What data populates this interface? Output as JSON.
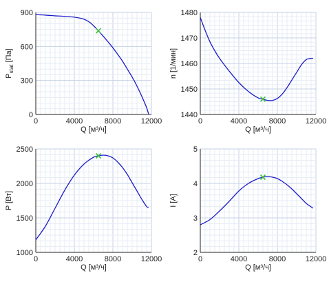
{
  "chart_data": [
    {
      "type": "line",
      "xlabel": "Q [м³/ч]",
      "ylabel": "P",
      "ylabel_sub": "stat",
      "ylabel_unit": " [Па]",
      "xlim": [
        0,
        12000
      ],
      "ylim": [
        0,
        900
      ],
      "x_ticks": [
        0,
        4000,
        8000,
        12000
      ],
      "y_ticks": [
        0,
        300,
        600,
        900
      ],
      "grid": true,
      "x": [
        0,
        1000,
        2000,
        3000,
        4000,
        5000,
        5600,
        6000,
        6500,
        7000,
        7500,
        8000,
        8500,
        9000,
        9500,
        10000,
        10500,
        11000,
        11500,
        11700
      ],
      "y": [
        880,
        876,
        870,
        865,
        858,
        840,
        812,
        782,
        738,
        690,
        640,
        588,
        530,
        470,
        400,
        330,
        250,
        160,
        60,
        5
      ],
      "operating_point": {
        "x": 6500,
        "y": 738
      }
    },
    {
      "type": "line",
      "xlabel": "Q [м³/ч]",
      "ylabel": "n [1/мин]",
      "xlim": [
        0,
        12000
      ],
      "ylim": [
        1440,
        1480
      ],
      "x_ticks": [
        0,
        4000,
        8000,
        12000
      ],
      "y_ticks": [
        1440,
        1450,
        1460,
        1470,
        1480
      ],
      "grid": true,
      "x": [
        0,
        500,
        1000,
        1500,
        2000,
        3000,
        4000,
        5000,
        6000,
        6500,
        7000,
        7500,
        8000,
        8500,
        9000,
        9500,
        10000,
        10500,
        11000,
        11500,
        11700
      ],
      "y": [
        1478,
        1473,
        1468.5,
        1465,
        1462,
        1457,
        1452.5,
        1449,
        1446.5,
        1446,
        1445.5,
        1445.5,
        1446.3,
        1448,
        1450.5,
        1453.5,
        1456.5,
        1459.5,
        1461.5,
        1462,
        1462
      ],
      "operating_point": {
        "x": 6500,
        "y": 1446
      }
    },
    {
      "type": "line",
      "xlabel": "Q [м³/ч]",
      "ylabel": "P [Вт]",
      "xlim": [
        0,
        12000
      ],
      "ylim": [
        1000,
        2500
      ],
      "x_ticks": [
        0,
        4000,
        8000,
        12000
      ],
      "y_ticks": [
        1000,
        1500,
        2000,
        2500
      ],
      "grid": true,
      "x": [
        0,
        1000,
        2000,
        3000,
        4000,
        5000,
        6000,
        6500,
        7000,
        7500,
        8000,
        8500,
        9000,
        9500,
        10000,
        10500,
        11000,
        11500,
        11700
      ],
      "y": [
        1180,
        1380,
        1640,
        1900,
        2120,
        2280,
        2380,
        2400,
        2410,
        2400,
        2370,
        2310,
        2230,
        2130,
        2010,
        1890,
        1770,
        1665,
        1650
      ],
      "operating_point": {
        "x": 6500,
        "y": 2400
      }
    },
    {
      "type": "line",
      "xlabel": "Q [м³/ч]",
      "ylabel": "I [A]",
      "xlim": [
        0,
        12000
      ],
      "ylim": [
        2,
        5
      ],
      "x_ticks": [
        0,
        4000,
        8000,
        12000
      ],
      "y_ticks": [
        2,
        3,
        4,
        5
      ],
      "grid": true,
      "x": [
        0,
        1000,
        2000,
        3000,
        4000,
        5000,
        6000,
        6500,
        7000,
        7500,
        8000,
        8500,
        9000,
        9500,
        10000,
        10500,
        11000,
        11500,
        11700
      ],
      "y": [
        2.8,
        2.95,
        3.2,
        3.48,
        3.78,
        4.0,
        4.14,
        4.18,
        4.2,
        4.18,
        4.14,
        4.06,
        3.96,
        3.84,
        3.7,
        3.56,
        3.42,
        3.32,
        3.28
      ],
      "operating_point": {
        "x": 6500,
        "y": 4.18
      }
    }
  ],
  "colors": {
    "curve": "#1c1cc8",
    "operating_point": "#3fbf3f",
    "grid_major": "#c6d2e4",
    "grid_minor": "#e6ecf5",
    "axis": "#222222"
  }
}
